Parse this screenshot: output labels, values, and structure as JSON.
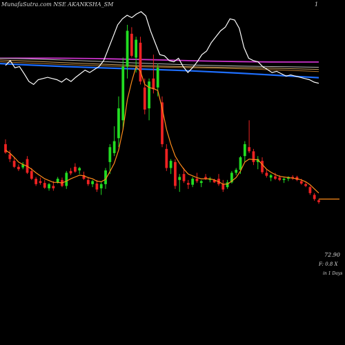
{
  "header": {
    "title": "MunafaSutra.com NSE AKANKSHA_SM",
    "corner_mark": "1"
  },
  "readout": {
    "price": "72.90",
    "change": "F: 0.8  X",
    "period": "in 1 Days"
  },
  "colors": {
    "background": "#000000",
    "up": "#22dd22",
    "down": "#ee2222",
    "close_line": "#ffffff",
    "ema_short": "#ff8c1a",
    "ma_purple": "#cc33cc",
    "ma_blue": "#1e6fff",
    "ma_tan": "#c8a060",
    "ma_grey": "#bbbbbb"
  },
  "chart_data": {
    "type": "candlestick",
    "candles": [
      {
        "o": 100,
        "h": 108,
        "l": 84,
        "c": 86
      },
      {
        "o": 83,
        "h": 90,
        "l": 70,
        "c": 75
      },
      {
        "o": 72,
        "h": 78,
        "l": 60,
        "c": 62
      },
      {
        "o": 62,
        "h": 66,
        "l": 55,
        "c": 58
      },
      {
        "o": 61,
        "h": 70,
        "l": 58,
        "c": 66
      },
      {
        "o": 75,
        "h": 80,
        "l": 50,
        "c": 52
      },
      {
        "o": 55,
        "h": 60,
        "l": 40,
        "c": 42
      },
      {
        "o": 42,
        "h": 45,
        "l": 30,
        "c": 33
      },
      {
        "o": 38,
        "h": 44,
        "l": 32,
        "c": 35
      },
      {
        "o": 35,
        "h": 40,
        "l": 25,
        "c": 27
      },
      {
        "o": 26,
        "h": 35,
        "l": 22,
        "c": 33
      },
      {
        "o": 30,
        "h": 38,
        "l": 22,
        "c": 26
      },
      {
        "o": 36,
        "h": 45,
        "l": 34,
        "c": 42
      },
      {
        "o": 40,
        "h": 44,
        "l": 28,
        "c": 30
      },
      {
        "o": 30,
        "h": 55,
        "l": 25,
        "c": 52
      },
      {
        "o": 55,
        "h": 60,
        "l": 48,
        "c": 51
      },
      {
        "o": 62,
        "h": 68,
        "l": 52,
        "c": 54
      },
      {
        "o": 56,
        "h": 62,
        "l": 50,
        "c": 60
      },
      {
        "o": 48,
        "h": 54,
        "l": 40,
        "c": 42
      },
      {
        "o": 40,
        "h": 45,
        "l": 30,
        "c": 33
      },
      {
        "o": 33,
        "h": 40,
        "l": 28,
        "c": 38
      },
      {
        "o": 34,
        "h": 40,
        "l": 20,
        "c": 24
      },
      {
        "o": 26,
        "h": 36,
        "l": 15,
        "c": 33
      },
      {
        "o": 33,
        "h": 60,
        "l": 25,
        "c": 56
      },
      {
        "o": 70,
        "h": 100,
        "l": 50,
        "c": 95
      },
      {
        "o": 85,
        "h": 130,
        "l": 80,
        "c": 105
      },
      {
        "o": 110,
        "h": 180,
        "l": 95,
        "c": 160
      },
      {
        "o": 140,
        "h": 245,
        "l": 125,
        "c": 230
      },
      {
        "o": 230,
        "h": 300,
        "l": 210,
        "c": 290
      },
      {
        "o": 285,
        "h": 296,
        "l": 245,
        "c": 248
      },
      {
        "o": 245,
        "h": 280,
        "l": 220,
        "c": 275
      },
      {
        "o": 270,
        "h": 280,
        "l": 200,
        "c": 205
      },
      {
        "o": 195,
        "h": 210,
        "l": 150,
        "c": 158
      },
      {
        "o": 160,
        "h": 210,
        "l": 140,
        "c": 205
      },
      {
        "o": 210,
        "h": 250,
        "l": 185,
        "c": 192
      },
      {
        "o": 195,
        "h": 235,
        "l": 180,
        "c": 228
      },
      {
        "o": 170,
        "h": 180,
        "l": 95,
        "c": 100
      },
      {
        "o": 92,
        "h": 100,
        "l": 55,
        "c": 60
      },
      {
        "o": 60,
        "h": 75,
        "l": 50,
        "c": 72
      },
      {
        "o": 70,
        "h": 75,
        "l": 25,
        "c": 30
      },
      {
        "o": 40,
        "h": 50,
        "l": 20,
        "c": 45
      },
      {
        "o": 50,
        "h": 60,
        "l": 35,
        "c": 38
      },
      {
        "o": 35,
        "h": 40,
        "l": 25,
        "c": 32
      },
      {
        "o": 32,
        "h": 45,
        "l": 28,
        "c": 42
      },
      {
        "o": 42,
        "h": 52,
        "l": 35,
        "c": 38
      },
      {
        "o": 35,
        "h": 40,
        "l": 28,
        "c": 38
      },
      {
        "o": 45,
        "h": 50,
        "l": 40,
        "c": 42
      },
      {
        "o": 40,
        "h": 45,
        "l": 36,
        "c": 42
      },
      {
        "o": 40,
        "h": 42,
        "l": 35,
        "c": 36
      },
      {
        "o": 42,
        "h": 50,
        "l": 30,
        "c": 33
      },
      {
        "o": 33,
        "h": 40,
        "l": 20,
        "c": 24
      },
      {
        "o": 28,
        "h": 40,
        "l": 25,
        "c": 36
      },
      {
        "o": 36,
        "h": 55,
        "l": 34,
        "c": 52
      },
      {
        "o": 52,
        "h": 60,
        "l": 48,
        "c": 57
      },
      {
        "o": 57,
        "h": 80,
        "l": 50,
        "c": 78
      },
      {
        "o": 80,
        "h": 105,
        "l": 70,
        "c": 100
      },
      {
        "o": 95,
        "h": 140,
        "l": 85,
        "c": 88
      },
      {
        "o": 88,
        "h": 92,
        "l": 65,
        "c": 70
      },
      {
        "o": 70,
        "h": 80,
        "l": 58,
        "c": 75
      },
      {
        "o": 72,
        "h": 78,
        "l": 50,
        "c": 53
      },
      {
        "o": 52,
        "h": 58,
        "l": 44,
        "c": 47
      },
      {
        "o": 44,
        "h": 50,
        "l": 38,
        "c": 48
      },
      {
        "o": 46,
        "h": 52,
        "l": 40,
        "c": 42
      },
      {
        "o": 44,
        "h": 48,
        "l": 38,
        "c": 40
      },
      {
        "o": 40,
        "h": 44,
        "l": 35,
        "c": 42
      },
      {
        "o": 42,
        "h": 46,
        "l": 38,
        "c": 45
      },
      {
        "o": 45,
        "h": 48,
        "l": 40,
        "c": 43
      },
      {
        "o": 45,
        "h": 47,
        "l": 38,
        "c": 40
      },
      {
        "o": 38,
        "h": 42,
        "l": 32,
        "c": 34
      },
      {
        "o": 33,
        "h": 36,
        "l": 28,
        "c": 30
      },
      {
        "o": 28,
        "h": 30,
        "l": 15,
        "c": 18
      },
      {
        "o": 15,
        "h": 18,
        "l": 5,
        "c": 8
      },
      {
        "o": 6,
        "h": 8,
        "l": 0,
        "c": 3
      }
    ],
    "close_line": [
      232,
      240,
      228,
      230,
      218,
      205,
      200,
      208,
      210,
      212,
      210,
      208,
      204,
      210,
      205,
      212,
      218,
      224,
      220,
      225,
      230,
      240,
      260,
      280,
      300,
      310,
      316,
      312,
      318,
      322,
      315,
      290,
      270,
      250,
      248,
      240,
      238,
      244,
      230,
      220,
      228,
      238,
      250,
      256,
      270,
      280,
      290,
      296,
      310,
      308,
      294,
      262,
      244,
      240,
      238,
      230,
      225,
      220,
      222,
      218,
      214,
      216,
      214,
      212,
      210,
      208,
      204,
      202
    ],
    "ema_short": [
      90,
      85,
      78,
      70,
      66,
      63,
      58,
      52,
      47,
      42,
      39,
      36,
      36,
      35,
      38,
      42,
      45,
      48,
      47,
      44,
      42,
      38,
      37,
      41,
      54,
      68,
      90,
      125,
      175,
      205,
      230,
      222,
      200,
      195,
      193,
      190,
      160,
      125,
      100,
      80,
      68,
      58,
      50,
      47,
      44,
      42,
      42,
      42,
      40,
      37,
      33,
      33,
      38,
      44,
      55,
      70,
      75,
      74,
      74,
      66,
      58,
      53,
      49,
      46,
      45,
      44,
      43,
      42,
      40,
      37,
      32,
      25,
      18
    ],
    "ma_lines": [
      {
        "color": "#cc33cc",
        "from": 244,
        "to": 238
      },
      {
        "color": "#bbbbbb",
        "from": 243,
        "to": 228
      },
      {
        "color": "#c8a060",
        "from": 240,
        "to": 224
      },
      {
        "color": "#b07830",
        "from": 238,
        "to": 221
      },
      {
        "color": "#1e6fff",
        "from": 236,
        "to": 212
      }
    ],
    "last_close": 72.9,
    "last_close_ylevel": 8,
    "ylim": [
      -40,
      330
    ]
  }
}
